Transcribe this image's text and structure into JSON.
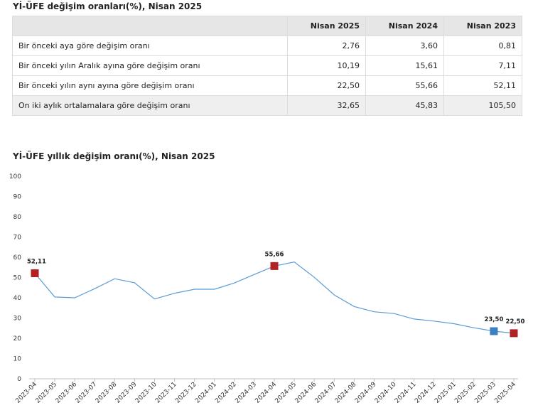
{
  "table": {
    "title": "Yİ-ÜFE değişim oranları(%), Nisan 2025",
    "headers": [
      "",
      "Nisan 2025",
      "Nisan 2024",
      "Nisan 2023"
    ],
    "rows": [
      {
        "label": "Bir önceki aya göre değişim oranı",
        "values": [
          "2,76",
          "3,60",
          "0,81"
        ]
      },
      {
        "label": "Bir önceki yılın Aralık ayına göre değişim oranı",
        "values": [
          "10,19",
          "15,61",
          "7,11"
        ]
      },
      {
        "label": "Bir önceki yılın aynı ayına göre değişim oranı",
        "values": [
          "22,50",
          "55,66",
          "52,11"
        ]
      },
      {
        "label": "On iki aylık ortalamalara göre değişim oranı",
        "values": [
          "32,65",
          "45,83",
          "105,50"
        ]
      }
    ]
  },
  "chart_data": {
    "type": "line",
    "title": "Yİ-ÜFE yıllık değişim oranı(%), Nisan 2025",
    "xlabel": "",
    "ylabel": "",
    "ylim": [
      0,
      100
    ],
    "yticks": [
      0,
      10,
      20,
      30,
      40,
      50,
      60,
      70,
      80,
      90,
      100
    ],
    "grid": false,
    "x": [
      "2023-04",
      "2023-05",
      "2023-06",
      "2023-07",
      "2023-08",
      "2023-09",
      "2023-10",
      "2023-11",
      "2023-12",
      "2024-01",
      "2024-02",
      "2024-03",
      "2024-04",
      "2024-05",
      "2024-06",
      "2024-07",
      "2024-08",
      "2024-09",
      "2024-10",
      "2024-11",
      "2024-12",
      "2025-01",
      "2025-02",
      "2025-03",
      "2025-04"
    ],
    "series": [
      {
        "values": [
          52.11,
          40.4,
          40.0,
          44.5,
          49.4,
          47.4,
          39.4,
          42.2,
          44.2,
          44.2,
          47.3,
          51.5,
          55.66,
          57.7,
          50.1,
          41.4,
          35.7,
          33.1,
          32.2,
          29.5,
          28.5,
          27.2,
          25.2,
          23.5,
          22.5
        ],
        "color": "#5b9bd5"
      }
    ],
    "markers": [
      {
        "x": "2023-04",
        "value": 52.11,
        "label": "52,11",
        "color": "#b22222"
      },
      {
        "x": "2024-04",
        "value": 55.66,
        "label": "55,66",
        "color": "#b22222"
      },
      {
        "x": "2025-03",
        "value": 23.5,
        "label": "23,50",
        "color": "#3a7fc1"
      },
      {
        "x": "2025-04",
        "value": 22.5,
        "label": "22,50",
        "color": "#b22222"
      }
    ]
  }
}
